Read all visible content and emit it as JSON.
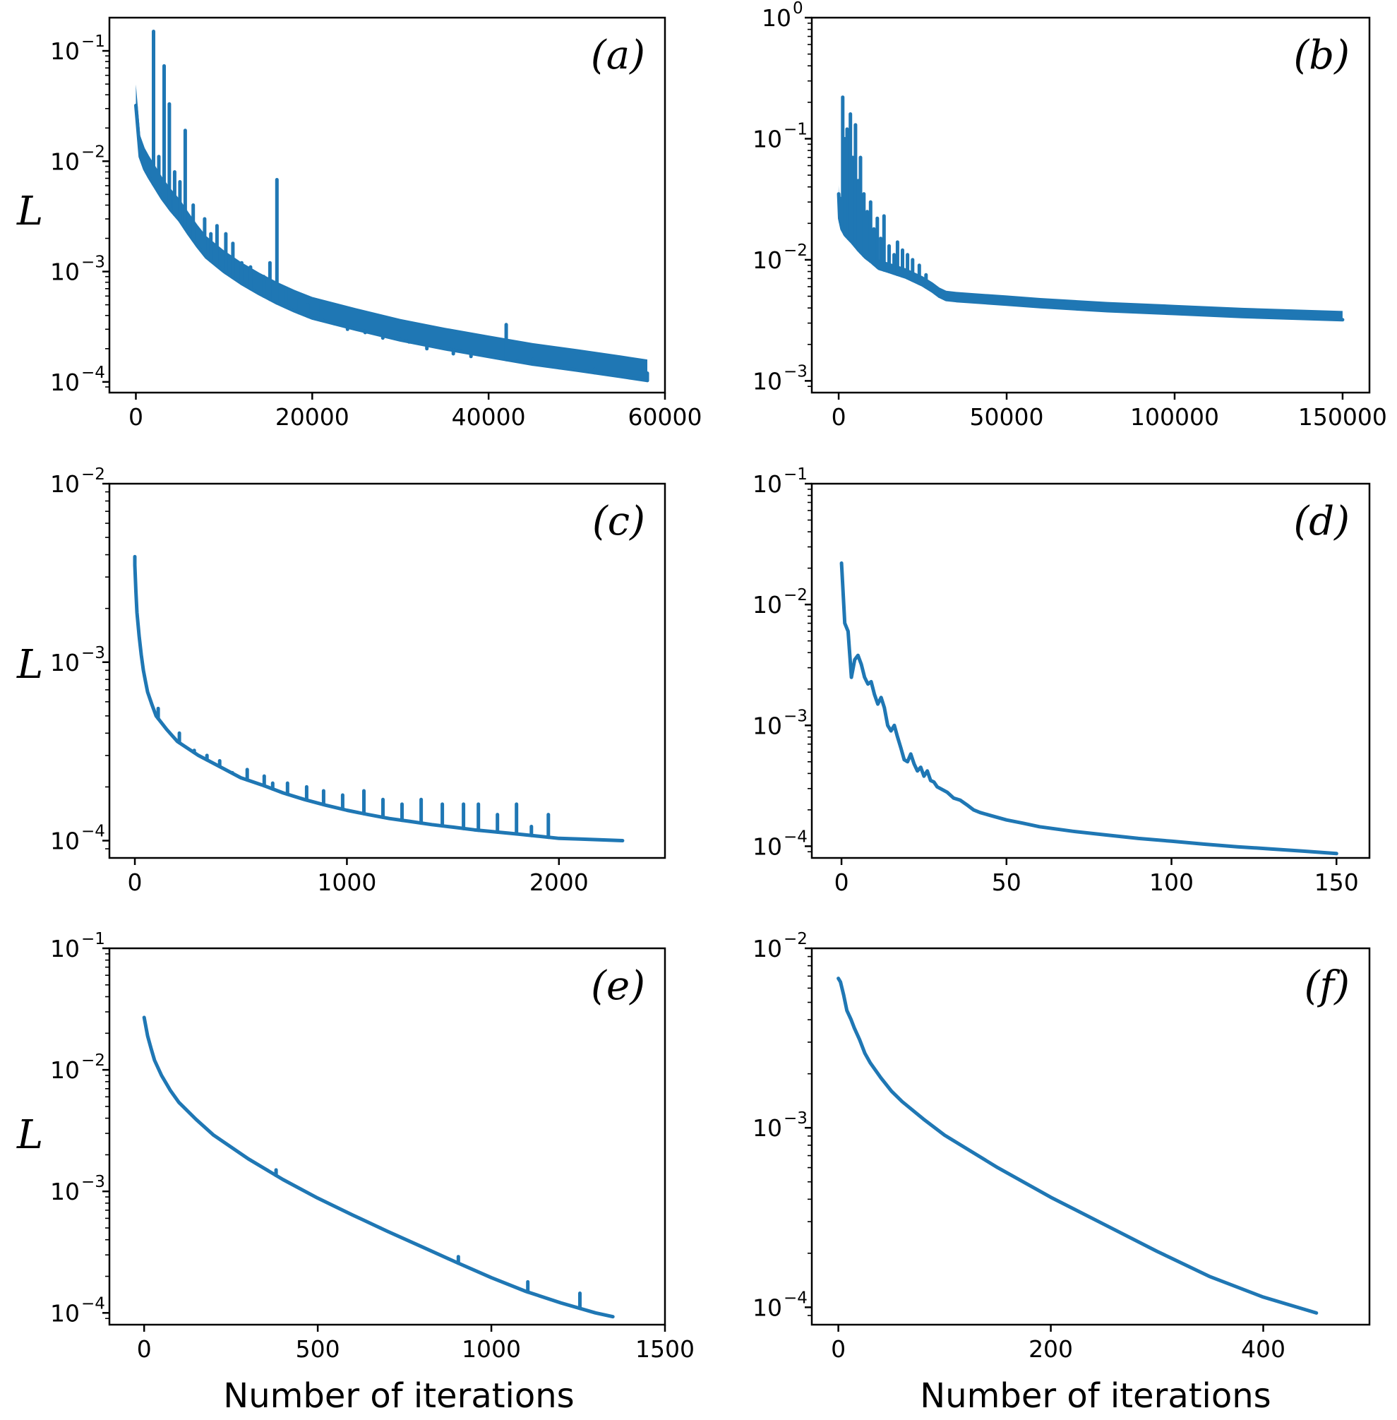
{
  "figure": {
    "ylabel": "L",
    "xlabel": "Number of iterations",
    "line_color": "#1f77b4"
  },
  "chart_data": [
    {
      "id": "a",
      "type": "line",
      "label": "(a)",
      "yscale": "log",
      "xlim": [
        -3000,
        60000
      ],
      "ylim": [
        8e-05,
        0.2
      ],
      "xticks": [
        0,
        20000,
        40000,
        60000
      ],
      "yticks": [
        0.0001,
        0.001,
        0.01,
        0.1
      ],
      "ytick_exponents": [
        "-4",
        "-3",
        "-2",
        "-1"
      ],
      "series": [
        {
          "x": [
            0,
            500,
            1000,
            1500,
            2000,
            3000,
            4000,
            5000,
            6000,
            7000,
            8000,
            10000,
            12000,
            14000,
            16000,
            18000,
            20000,
            25000,
            30000,
            35000,
            40000,
            45000,
            50000,
            55000,
            58000
          ],
          "y": [
            0.032,
            0.011,
            0.0085,
            0.0072,
            0.0062,
            0.0046,
            0.0036,
            0.0029,
            0.0022,
            0.0017,
            0.00135,
            0.001,
            0.00078,
            0.00063,
            0.00052,
            0.00044,
            0.00038,
            0.0003,
            0.00024,
            0.0002,
            0.00017,
            0.000145,
            0.000128,
            0.000112,
            0.000103
          ],
          "spikes": [
            [
              1200,
              0.0095
            ],
            [
              2000,
              0.15
            ],
            [
              2600,
              0.011
            ],
            [
              3200,
              0.073
            ],
            [
              3800,
              0.033
            ],
            [
              4400,
              0.008
            ],
            [
              5000,
              0.0065
            ],
            [
              5600,
              0.019
            ],
            [
              6500,
              0.004
            ],
            [
              7800,
              0.003
            ],
            [
              8500,
              0.0022
            ],
            [
              9200,
              0.0026
            ],
            [
              10200,
              0.0022
            ],
            [
              11000,
              0.0018
            ],
            [
              12000,
              0.0012
            ],
            [
              13000,
              0.0011
            ],
            [
              14500,
              0.0009
            ],
            [
              15200,
              0.0012
            ],
            [
              16000,
              0.0068
            ],
            [
              17000,
              0.0007
            ],
            [
              18500,
              0.00055
            ],
            [
              19500,
              0.0005
            ],
            [
              21000,
              0.0005
            ],
            [
              22500,
              0.0005
            ],
            [
              24000,
              0.0003
            ],
            [
              26000,
              0.00028
            ],
            [
              28000,
              0.00025
            ],
            [
              31000,
              0.00023
            ],
            [
              33000,
              0.0002
            ],
            [
              36000,
              0.00018
            ],
            [
              38000,
              0.00017
            ],
            [
              42000,
              0.00033
            ],
            [
              45000,
              0.00016
            ],
            [
              48000,
              0.00014
            ],
            [
              52000,
              0.00013
            ],
            [
              56000,
              0.00012
            ],
            [
              58000,
              0.00012
            ]
          ],
          "band_factor": 1.55
        }
      ]
    },
    {
      "id": "b",
      "type": "line",
      "label": "(b)",
      "yscale": "log",
      "xlim": [
        -8000,
        158000
      ],
      "ylim": [
        0.0008,
        1
      ],
      "xticks": [
        0,
        50000,
        100000,
        150000
      ],
      "yticks": [
        0.001,
        0.01,
        0.1,
        1
      ],
      "ytick_exponents": [
        "-3",
        "-2",
        "-1",
        "0"
      ],
      "series": [
        {
          "x": [
            0,
            300,
            1000,
            2000,
            4000,
            6000,
            8000,
            10000,
            12000,
            15000,
            20000,
            25000,
            28000,
            30000,
            32000,
            35000,
            40000,
            50000,
            60000,
            80000,
            100000,
            120000,
            150000
          ],
          "y": [
            0.035,
            0.022,
            0.018,
            0.016,
            0.014,
            0.012,
            0.0105,
            0.0095,
            0.0085,
            0.008,
            0.0072,
            0.0062,
            0.0055,
            0.005,
            0.0047,
            0.0046,
            0.0045,
            0.0043,
            0.0041,
            0.0038,
            0.0036,
            0.0034,
            0.0032
          ],
          "spikes": [
            [
              500,
              0.032
            ],
            [
              1200,
              0.22
            ],
            [
              1800,
              0.1
            ],
            [
              2500,
              0.12
            ],
            [
              3000,
              0.06
            ],
            [
              3500,
              0.16
            ],
            [
              4200,
              0.07
            ],
            [
              5000,
              0.13
            ],
            [
              5800,
              0.045
            ],
            [
              6500,
              0.07
            ],
            [
              7500,
              0.035
            ],
            [
              8500,
              0.025
            ],
            [
              9500,
              0.03
            ],
            [
              10500,
              0.018
            ],
            [
              11500,
              0.022
            ],
            [
              12500,
              0.015
            ],
            [
              13500,
              0.023
            ],
            [
              15000,
              0.013
            ],
            [
              16500,
              0.011
            ],
            [
              17500,
              0.014
            ],
            [
              19000,
              0.012
            ],
            [
              20500,
              0.011
            ],
            [
              22000,
              0.01
            ],
            [
              24000,
              0.009
            ],
            [
              26000,
              0.0075
            ],
            [
              30000,
              0.0054
            ]
          ],
          "band_factor": 1.18
        }
      ]
    },
    {
      "id": "c",
      "type": "line",
      "label": "(c)",
      "yscale": "log",
      "xlim": [
        -120,
        2500
      ],
      "ylim": [
        8e-05,
        0.01
      ],
      "xticks": [
        0,
        1000,
        2000
      ],
      "yticks": [
        0.0001,
        0.001,
        0.01
      ],
      "ytick_exponents": [
        "-4",
        "-3",
        "-2"
      ],
      "series": [
        {
          "x": [
            0,
            5,
            10,
            20,
            30,
            40,
            50,
            60,
            80,
            100,
            150,
            200,
            300,
            400,
            500,
            600,
            700,
            800,
            900,
            1000,
            1100,
            1200,
            1300,
            1400,
            1500,
            1600,
            1700,
            1800,
            1900,
            2000,
            2100,
            2200,
            2300
          ],
          "y": [
            0.0035,
            0.0025,
            0.0019,
            0.0014,
            0.0011,
            0.0009,
            0.00078,
            0.00068,
            0.00058,
            0.0005,
            0.00042,
            0.00036,
            0.0003,
            0.00026,
            0.000225,
            0.000205,
            0.000185,
            0.00017,
            0.000158,
            0.000148,
            0.00014,
            0.000133,
            0.000128,
            0.000123,
            0.000119,
            0.000115,
            0.000112,
            0.000109,
            0.000106,
            0.000103,
            0.000102,
            0.000101,
            0.0001
          ],
          "spikes": [
            [
              0,
              0.0039
            ],
            [
              110,
              0.00055
            ],
            [
              210,
              0.0004
            ],
            [
              280,
              0.00032
            ],
            [
              340,
              0.0003
            ],
            [
              400,
              0.00028
            ],
            [
              460,
              0.00024
            ],
            [
              530,
              0.00025
            ],
            [
              610,
              0.00023
            ],
            [
              650,
              0.00021
            ],
            [
              720,
              0.00021
            ],
            [
              810,
              0.0002
            ],
            [
              890,
              0.00019
            ],
            [
              980,
              0.00018
            ],
            [
              1080,
              0.00019
            ],
            [
              1170,
              0.00017
            ],
            [
              1260,
              0.00016
            ],
            [
              1350,
              0.00017
            ],
            [
              1450,
              0.00016
            ],
            [
              1550,
              0.00016
            ],
            [
              1620,
              0.00016
            ],
            [
              1710,
              0.00014
            ],
            [
              1800,
              0.00016
            ],
            [
              1870,
              0.00012
            ],
            [
              1950,
              0.00014
            ]
          ],
          "band_factor": 1.0
        }
      ]
    },
    {
      "id": "d",
      "type": "line",
      "label": "(d)",
      "yscale": "log",
      "xlim": [
        -9,
        160
      ],
      "ylim": [
        8e-05,
        0.1
      ],
      "xticks": [
        0,
        50,
        100,
        150
      ],
      "yticks": [
        0.0001,
        0.001,
        0.01,
        0.1
      ],
      "ytick_exponents": [
        "-4",
        "-3",
        "-2",
        "-1"
      ],
      "series": [
        {
          "x": [
            0,
            1,
            2,
            3,
            4,
            5,
            6,
            7,
            8,
            9,
            10,
            11,
            12,
            13,
            14,
            15,
            16,
            17,
            18,
            19,
            20,
            21,
            22,
            23,
            24,
            25,
            26,
            27,
            28,
            29,
            30,
            32,
            34,
            36,
            38,
            40,
            42,
            45,
            50,
            55,
            60,
            70,
            80,
            90,
            100,
            110,
            120,
            130,
            140,
            150
          ],
          "y": [
            0.022,
            0.007,
            0.006,
            0.0025,
            0.0035,
            0.0038,
            0.0032,
            0.0025,
            0.0022,
            0.0023,
            0.0018,
            0.0015,
            0.0017,
            0.0014,
            0.001,
            0.0009,
            0.001,
            0.0008,
            0.00065,
            0.00052,
            0.0005,
            0.00058,
            0.00048,
            0.00042,
            0.00045,
            0.00038,
            0.00042,
            0.00035,
            0.00034,
            0.00031,
            0.0003,
            0.00028,
            0.00025,
            0.00024,
            0.00022,
            0.0002,
            0.00019,
            0.00018,
            0.000165,
            0.000155,
            0.000145,
            0.000133,
            0.000124,
            0.000116,
            0.00011,
            0.000104,
            9.9e-05,
            9.5e-05,
            9.1e-05,
            8.7e-05
          ],
          "spikes": [],
          "band_factor": 1.0
        }
      ]
    },
    {
      "id": "e",
      "type": "line",
      "label": "(e)",
      "yscale": "log",
      "xlim": [
        -100,
        1500
      ],
      "ylim": [
        8e-05,
        0.1
      ],
      "xticks": [
        0,
        500,
        1000,
        1500
      ],
      "yticks": [
        0.0001,
        0.001,
        0.01,
        0.1
      ],
      "ytick_exponents": [
        "-4",
        "-3",
        "-2",
        "-1"
      ],
      "series": [
        {
          "x": [
            0,
            10,
            20,
            30,
            50,
            75,
            100,
            150,
            200,
            300,
            400,
            500,
            600,
            700,
            800,
            900,
            1000,
            1100,
            1200,
            1300,
            1350
          ],
          "y": [
            0.027,
            0.019,
            0.015,
            0.012,
            0.009,
            0.0068,
            0.0054,
            0.0039,
            0.0029,
            0.00185,
            0.00125,
            0.00088,
            0.00064,
            0.00047,
            0.00035,
            0.00026,
            0.000195,
            0.00015,
            0.000121,
            0.0001,
            9.3e-05
          ],
          "spikes": [
            [
              380,
              0.0015
            ],
            [
              680,
              0.0005
            ],
            [
              905,
              0.00029
            ],
            [
              1105,
              0.00018
            ],
            [
              1255,
              0.000145
            ]
          ],
          "band_factor": 1.0
        }
      ]
    },
    {
      "id": "f",
      "type": "line",
      "label": "(f)",
      "yscale": "log",
      "xlim": [
        -25,
        500
      ],
      "ylim": [
        8e-05,
        0.01
      ],
      "xticks": [
        0,
        200,
        400
      ],
      "yticks": [
        0.0001,
        0.001,
        0.01
      ],
      "ytick_exponents": [
        "-4",
        "-3",
        "-2"
      ],
      "series": [
        {
          "x": [
            0,
            2,
            5,
            8,
            12,
            15,
            20,
            25,
            30,
            40,
            50,
            60,
            80,
            100,
            150,
            200,
            250,
            300,
            350,
            400,
            450
          ],
          "y": [
            0.0068,
            0.0065,
            0.0055,
            0.0045,
            0.004,
            0.0036,
            0.0031,
            0.0026,
            0.0023,
            0.0019,
            0.0016,
            0.0014,
            0.00112,
            0.00091,
            0.0006,
            0.00041,
            0.00029,
            0.000205,
            0.000148,
            0.000114,
            9.3e-05
          ],
          "spikes": [],
          "band_factor": 1.0
        }
      ]
    }
  ]
}
